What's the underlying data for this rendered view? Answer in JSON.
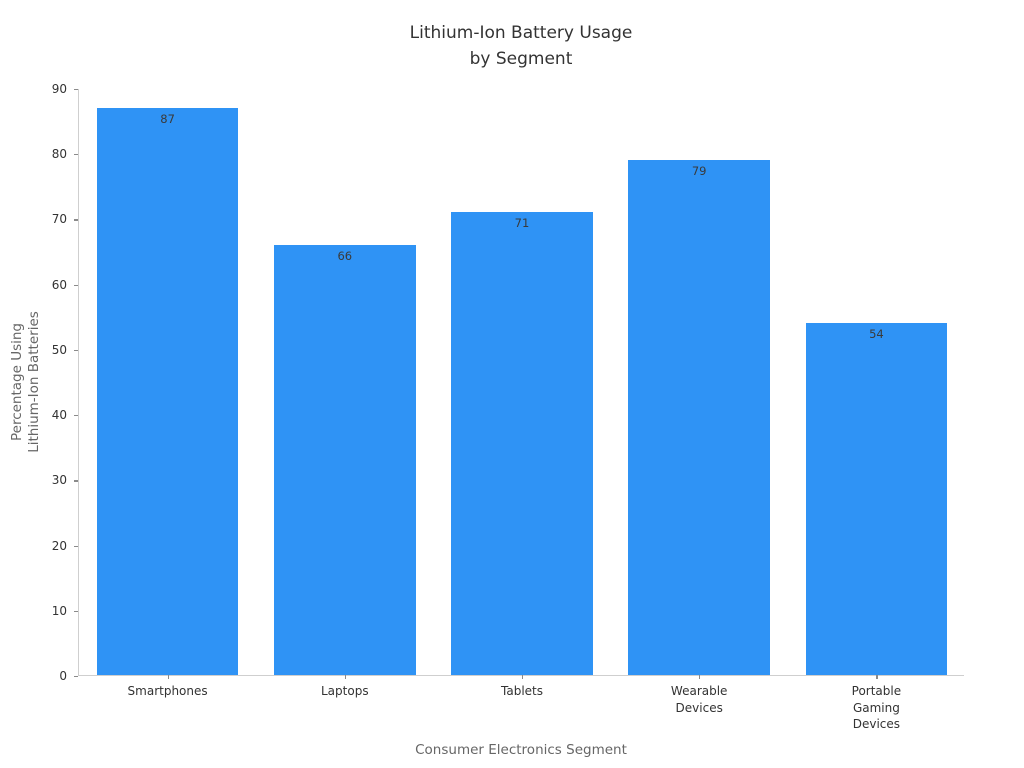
{
  "chart_data": {
    "type": "bar",
    "title": "Lithium-Ion Battery Usage\nby Segment",
    "categories": [
      "Smartphones",
      "Laptops",
      "Tablets",
      "Wearable\nDevices",
      "Portable\nGaming\nDevices"
    ],
    "values": [
      87,
      66,
      71,
      79,
      54
    ],
    "value_labels": [
      "87",
      "66",
      "71",
      "79",
      "54"
    ],
    "xlabel": "Consumer Electronics Segment",
    "ylabel": "Percentage Using\nLithium-Ion Batteries",
    "ylim": [
      0,
      90
    ],
    "yticks": [
      0,
      10,
      20,
      30,
      40,
      50,
      60,
      70,
      80,
      90
    ],
    "grid": false,
    "legend": null,
    "bar_color": "#2f93f5",
    "value_label_color": "#3a3a3a"
  }
}
